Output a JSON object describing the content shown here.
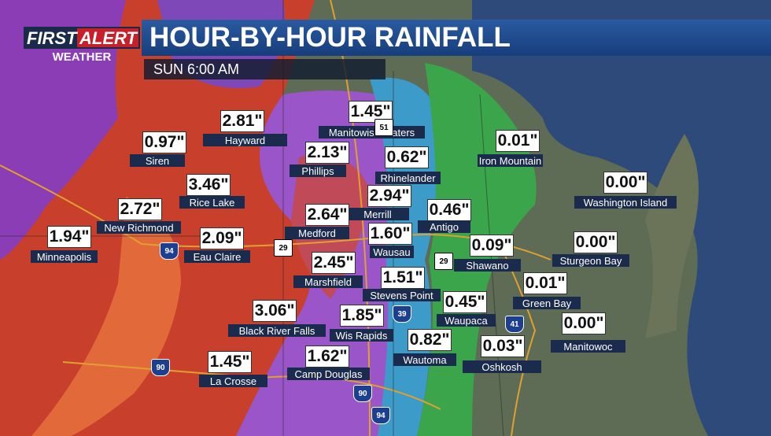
{
  "header": {
    "logo_top_left": "FIRST",
    "logo_top_right": "ALERT",
    "logo_bottom": "WEATHER",
    "title": "HOUR-BY-HOUR RAINFALL",
    "subtitle": "SUN 6:00 AM"
  },
  "cities": [
    {
      "name": "Hayward",
      "value": "2.81\""
    },
    {
      "name": "Manitowish Waters",
      "value": "1.45\""
    },
    {
      "name": "Siren",
      "value": "0.97\""
    },
    {
      "name": "Phillips",
      "value": "2.13\""
    },
    {
      "name": "Rhinelander",
      "value": "0.62\""
    },
    {
      "name": "Iron Mountain",
      "value": "0.01\""
    },
    {
      "name": "Rice Lake",
      "value": "3.46\""
    },
    {
      "name": "Washington Island",
      "value": "0.00\""
    },
    {
      "name": "Merrill",
      "value": "2.94\""
    },
    {
      "name": "Antigo",
      "value": "0.46\""
    },
    {
      "name": "New Richmond",
      "value": "2.72\""
    },
    {
      "name": "Medford",
      "value": "2.64\""
    },
    {
      "name": "Minneapolis",
      "value": "1.94\""
    },
    {
      "name": "Eau Claire",
      "value": "2.09\""
    },
    {
      "name": "Wausau",
      "value": "1.60\""
    },
    {
      "name": "Shawano",
      "value": "0.09\""
    },
    {
      "name": "Sturgeon Bay",
      "value": "0.00\""
    },
    {
      "name": "Marshfield",
      "value": "2.45\""
    },
    {
      "name": "Stevens Point",
      "value": "1.51\""
    },
    {
      "name": "Green Bay",
      "value": "0.01\""
    },
    {
      "name": "Waupaca",
      "value": "0.45\""
    },
    {
      "name": "Black River Falls",
      "value": "3.06\""
    },
    {
      "name": "Wis Rapids",
      "value": "1.85\""
    },
    {
      "name": "Manitowoc",
      "value": "0.00\""
    },
    {
      "name": "Wautoma",
      "value": "0.82\""
    },
    {
      "name": "Oshkosh",
      "value": "0.03\""
    },
    {
      "name": "La Crosse",
      "value": "1.45\""
    },
    {
      "name": "Camp Douglas",
      "value": "1.62\""
    }
  ],
  "highway_shields": [
    "94",
    "29",
    "51",
    "29",
    "39",
    "41",
    "90",
    "90",
    "94"
  ]
}
